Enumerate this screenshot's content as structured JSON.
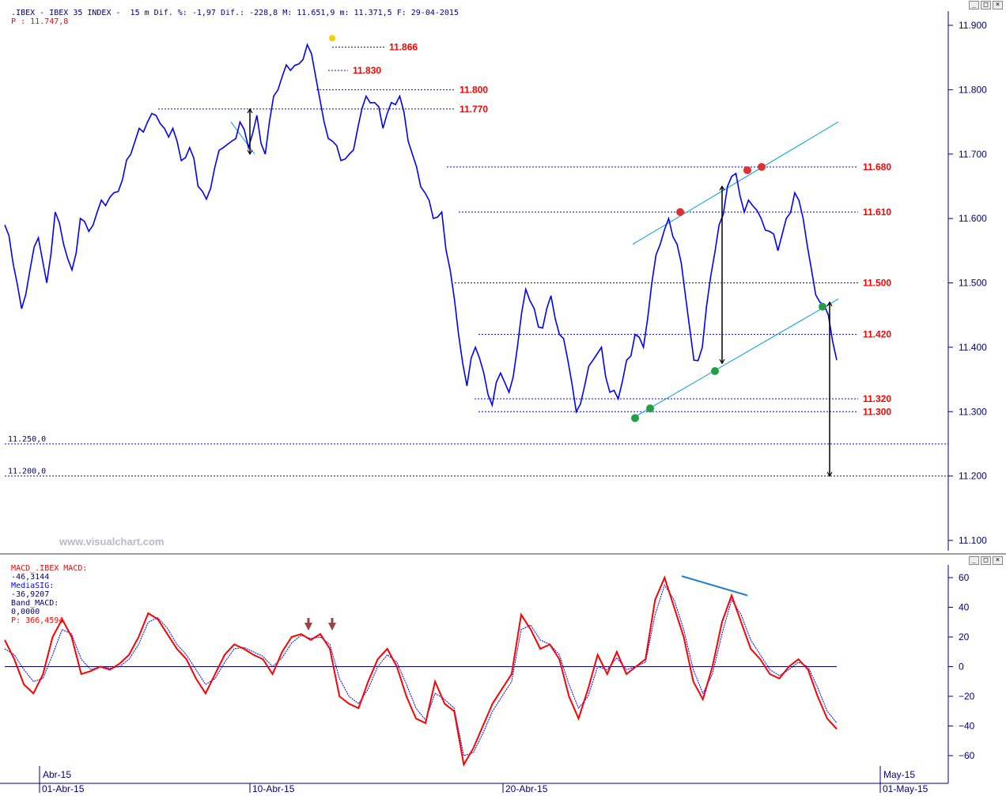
{
  "header": {
    "main_title": ".IBEX - IBEX 35 INDEX -  15 m Dif. %: -1,97 Dif.: -228,8 M: 11.651,9 m: 11.371,5 F: 29-04-2015",
    "main_price": "P : 11.747,8",
    "macd_name": "MACD_.IBEX MACD:",
    "macd_value": "-46,3144",
    "macd_signal_label": "MediaSIG:",
    "macd_signal_value": "-36,9207",
    "macd_band_label": "Band_MACD:",
    "macd_band_value": "0,0000",
    "macd_p": "P: 366,4594",
    "window_buttons": [
      "_",
      "□",
      "×"
    ]
  },
  "watermark": "www.visualchart.com",
  "colors": {
    "price_line": "#0000ff",
    "level_label": "#ff0000",
    "channel": "#00a0e0",
    "macd": "#ff0000",
    "signal": "#0000ff",
    "axis_text": "#000080"
  },
  "chart_data": [
    {
      "type": "line",
      "title": "IBEX 35 INDEX 15 m",
      "ylim": [
        11100,
        11900
      ],
      "y_ticks": [
        "11.900",
        "11.800",
        "11.700",
        "11.600",
        "11.500",
        "11.400",
        "11.300",
        "11.200",
        "11.100"
      ],
      "series": [
        {
          "values": [
            11590,
            11530,
            11460,
            11520,
            11570,
            11500,
            11610,
            11560,
            11520,
            11600,
            11580,
            11610,
            11620,
            11640,
            11660,
            11700,
            11740,
            11750,
            11760,
            11740,
            11740,
            11690,
            11710,
            11650,
            11630,
            11680,
            11710,
            11720,
            11750,
            11710,
            11760,
            11700,
            11790,
            11820,
            11830,
            11840,
            11870,
            11820,
            11750,
            11720,
            11690,
            11700,
            11740,
            11790,
            11780,
            11740,
            11780,
            11790,
            11720,
            11680,
            11640,
            11600,
            11610,
            11520,
            11420,
            11340,
            11400,
            11360,
            11310,
            11360,
            11330,
            11400,
            11490,
            11460,
            11430,
            11480,
            11420,
            11380,
            11300,
            11340,
            11380,
            11400,
            11330,
            11320,
            11380,
            11420,
            11400,
            11500,
            11560,
            11600,
            11560,
            11480,
            11380,
            11400,
            11510,
            11590,
            11650,
            11670,
            11610,
            11620,
            11600,
            11580,
            11550,
            11600,
            11640,
            11600,
            11520,
            11470,
            11450,
            11380
          ]
        }
      ],
      "levels": [
        11866,
        11830,
        11800,
        11770,
        11680,
        11610,
        11500,
        11420,
        11320,
        11300,
        11250,
        11200
      ],
      "level_labels": [
        "11.866",
        "11.830",
        "11.800",
        "11.770",
        "11.680",
        "11.610",
        "11.500",
        "11.420",
        "11.320",
        "11.300",
        "11.250,0",
        "11.200,0"
      ]
    },
    {
      "type": "line",
      "title": "MACD_.IBEX",
      "ylim": [
        -70,
        70
      ],
      "y_ticks": [
        "60",
        "40",
        "20",
        "0",
        "−20",
        "−40",
        "−60"
      ],
      "series": [
        {
          "name": "MACD",
          "values": [
            18,
            5,
            -12,
            -18,
            -5,
            20,
            32,
            20,
            -5,
            -3,
            0,
            -2,
            2,
            8,
            20,
            36,
            32,
            22,
            12,
            5,
            -8,
            -18,
            -5,
            8,
            15,
            12,
            8,
            5,
            -5,
            10,
            20,
            22,
            18,
            22,
            12,
            -20,
            -25,
            -28,
            -10,
            5,
            12,
            0,
            -20,
            -35,
            -38,
            -10,
            -25,
            -30,
            -66,
            -55,
            -40,
            -25,
            -15,
            -5,
            35,
            25,
            12,
            15,
            5,
            -20,
            -35,
            -15,
            8,
            -5,
            10,
            -5,
            0,
            5,
            45,
            60,
            40,
            20,
            -10,
            -22,
            0,
            30,
            48,
            30,
            12,
            5,
            -5,
            -8,
            0,
            5,
            -2,
            -20,
            -35,
            -42
          ]
        },
        {
          "name": "MediaSIG",
          "values": [
            12,
            8,
            -2,
            -10,
            -8,
            8,
            25,
            22,
            5,
            -2,
            0,
            -1,
            0,
            5,
            15,
            30,
            33,
            26,
            15,
            8,
            -2,
            -12,
            -8,
            3,
            12,
            13,
            10,
            7,
            0,
            6,
            16,
            21,
            19,
            20,
            15,
            -8,
            -20,
            -25,
            -15,
            0,
            8,
            3,
            -12,
            -28,
            -36,
            -18,
            -22,
            -28,
            -60,
            -58,
            -45,
            -30,
            -20,
            -10,
            25,
            28,
            18,
            15,
            8,
            -12,
            -28,
            -20,
            0,
            -2,
            6,
            -2,
            0,
            3,
            35,
            55,
            45,
            25,
            -2,
            -18,
            -5,
            22,
            45,
            35,
            18,
            8,
            -2,
            -6,
            -2,
            3,
            0,
            -14,
            -30,
            -38
          ]
        }
      ]
    }
  ],
  "x_axis": {
    "month_labels": [
      "Abr-15",
      "May-15"
    ],
    "date_labels": [
      "01-Abr-15",
      "10-Abr-15",
      "20-Abr-15",
      "01-May-15"
    ]
  }
}
